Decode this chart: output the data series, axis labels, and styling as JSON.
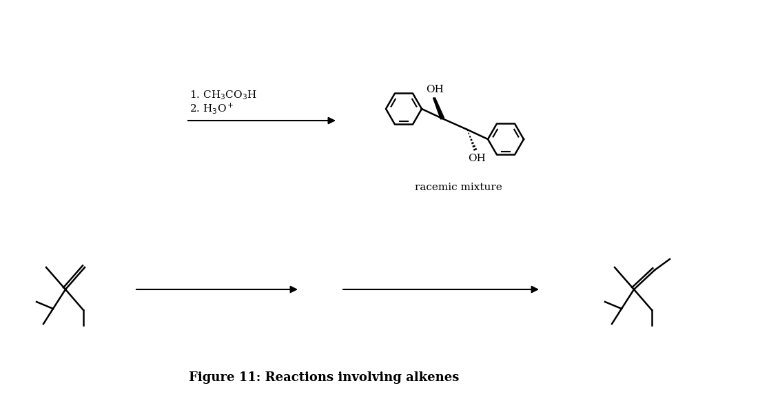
{
  "background": "#ffffff",
  "title": "Figure 11: Reactions involving alkenes",
  "title_fontsize": 13,
  "reagent_line1": "1. CH$_3$CO$_3$H",
  "reagent_line2": "2. H$_3$O$^+$",
  "racemic_label": "racemic mixture"
}
